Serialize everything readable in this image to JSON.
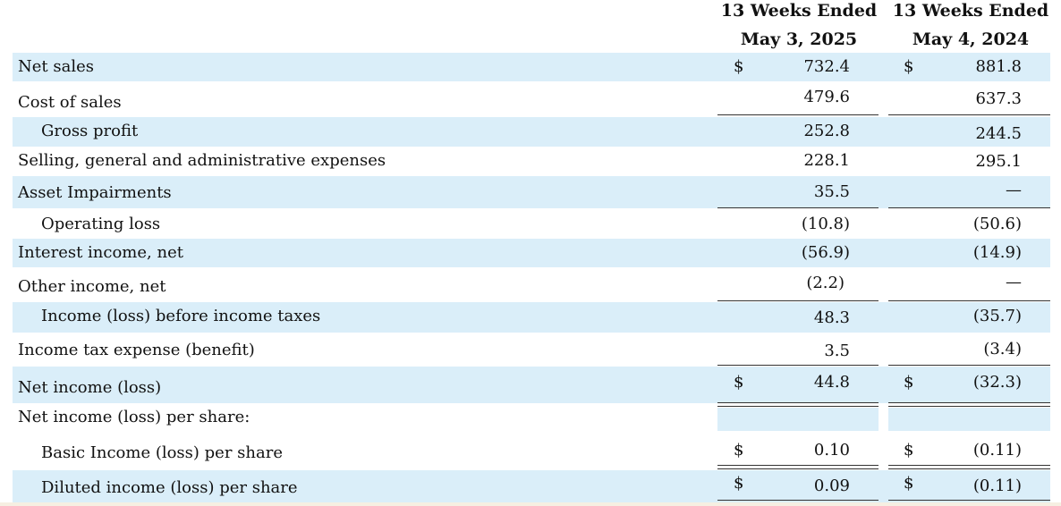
{
  "header": {
    "col1_line1": "13 Weeks Ended",
    "col1_line2": "May 3, 2025",
    "col2_line1": "13 Weeks Ended",
    "col2_line2": "May 4, 2024"
  },
  "rows": [
    {
      "label": "Net sales",
      "dollar1": "$",
      "v1": "732.4",
      "dollar2": "$",
      "v2": "881.8"
    },
    {
      "label": "Cost of sales",
      "v1": "479.6",
      "v2": "637.3"
    },
    {
      "label": "Gross profit",
      "v1": "252.8",
      "v2": "244.5"
    },
    {
      "label": "Selling, general and administrative expenses",
      "v1": "228.1",
      "v2": "295.1"
    },
    {
      "label": "Asset Impairments",
      "v1": "35.5",
      "v2": "—"
    },
    {
      "label": "Operating loss",
      "v1": "(10.8)",
      "v2": "(50.6)"
    },
    {
      "label": "Interest income, net",
      "v1": "(56.9)",
      "v2": "(14.9)"
    },
    {
      "label": "Other income, net",
      "v1": "(2.2)",
      "v2": "—"
    },
    {
      "label": "Income (loss) before income taxes",
      "v1": "48.3",
      "v2": "(35.7)"
    },
    {
      "label": "Income tax expense (benefit)",
      "v1": "3.5",
      "v2": "(3.4)"
    },
    {
      "label": "Net income (loss)",
      "dollar1": "$",
      "v1": "44.8",
      "dollar2": "$",
      "v2": "(32.3)"
    },
    {
      "label": "Net income (loss) per share:"
    },
    {
      "label": "Basic Income (loss) per share",
      "dollar1": "$",
      "v1": "0.10",
      "dollar2": "$",
      "v2": "(0.11)"
    },
    {
      "label": "Diluted income (loss) per share",
      "dollar1": "$",
      "v1": "0.09",
      "dollar2": "$",
      "v2": "(0.11)"
    }
  ]
}
